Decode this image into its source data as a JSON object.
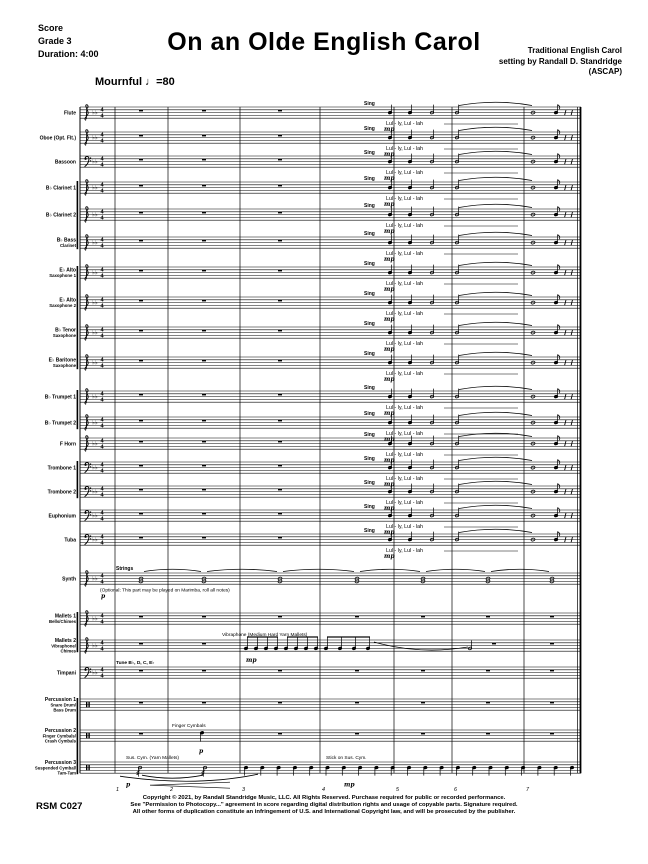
{
  "header": {
    "score_label": "Score",
    "grade": "Grade 3",
    "duration": "Duration: 4:00",
    "title": "On an Olde English Carol",
    "credit_line1": "Traditional English Carol",
    "credit_line2": "setting by Randall D. Standridge",
    "credit_line3": "(ASCAP)",
    "tempo_word": "Mournful",
    "tempo_note": "♩",
    "tempo_value": "=80"
  },
  "score": {
    "time_signature": [
      "4",
      "4"
    ],
    "key_signature": "♭♭",
    "measure_numbers": [
      "1",
      "2",
      "3",
      "4",
      "5",
      "6",
      "7"
    ],
    "staves": [
      {
        "label_lines": [
          "Flute"
        ],
        "clef": "treble",
        "kind": "wind"
      },
      {
        "label_lines": [
          "Oboe (Opt. Flt.)"
        ],
        "clef": "treble",
        "kind": "wind"
      },
      {
        "label_lines": [
          "Bassoon"
        ],
        "clef": "bass",
        "kind": "wind"
      },
      {
        "label_lines": [
          "B♭ Clarinet 1"
        ],
        "clef": "treble",
        "kind": "wind"
      },
      {
        "label_lines": [
          "B♭ Clarinet 2"
        ],
        "clef": "treble",
        "kind": "wind"
      },
      {
        "label_lines": [
          "B♭ Bass",
          "Clarinet"
        ],
        "clef": "treble",
        "kind": "wind"
      },
      {
        "label_lines": [
          "E♭ Alto",
          "Saxophone 1"
        ],
        "clef": "treble",
        "kind": "wind"
      },
      {
        "label_lines": [
          "E♭ Alto",
          "Saxophone 2"
        ],
        "clef": "treble",
        "kind": "wind"
      },
      {
        "label_lines": [
          "B♭ Tenor",
          "Saxophone"
        ],
        "clef": "treble",
        "kind": "wind"
      },
      {
        "label_lines": [
          "E♭ Baritone",
          "Saxophone"
        ],
        "clef": "treble",
        "kind": "wind"
      },
      {
        "label_lines": [
          "B♭ Trumpet 1"
        ],
        "clef": "treble",
        "kind": "wind"
      },
      {
        "label_lines": [
          "B♭ Trumpet 2"
        ],
        "clef": "treble",
        "kind": "wind"
      },
      {
        "label_lines": [
          "F Horn"
        ],
        "clef": "treble",
        "kind": "wind"
      },
      {
        "label_lines": [
          "Trombone 1"
        ],
        "clef": "bass",
        "kind": "wind"
      },
      {
        "label_lines": [
          "Trombone 2"
        ],
        "clef": "bass",
        "kind": "wind"
      },
      {
        "label_lines": [
          "Euphonium"
        ],
        "clef": "bass",
        "kind": "wind"
      },
      {
        "label_lines": [
          "Tuba"
        ],
        "clef": "bass",
        "kind": "wind"
      },
      {
        "label_lines": [
          "Synth"
        ],
        "clef": "treble",
        "kind": "synth"
      },
      {
        "label_lines": [
          "Mallets 1",
          "Bells/Chimes"
        ],
        "clef": "treble",
        "kind": "rests"
      },
      {
        "label_lines": [
          "Mallets 2",
          "Vibraphone/",
          "Chimes"
        ],
        "clef": "treble",
        "kind": "mallet2"
      },
      {
        "label_lines": [
          "Timpani"
        ],
        "clef": "bass",
        "kind": "timpani"
      },
      {
        "label_lines": [
          "Percussion 1",
          "Snare Drum/",
          "Bass Drum"
        ],
        "clef": "perc",
        "kind": "rests"
      },
      {
        "label_lines": [
          "Percussion 2",
          "Finger Cymbals/",
          "Crash Cymbals"
        ],
        "clef": "perc",
        "kind": "perc2"
      },
      {
        "label_lines": [
          "Percussion 3",
          "Suspended Cymbal/",
          "Tam-Tam"
        ],
        "clef": "perc",
        "kind": "perc3"
      }
    ],
    "annotations": {
      "sing": "Sing",
      "lyrics": "Lul - ly,  Lul - lah",
      "dyn_mp": "mp",
      "dyn_p": "p",
      "strings_label": "Strings",
      "synth_optional": "(Optional: This part may be played on Marimba, roll all notes)",
      "vibraphone": "Vibraphone (Medium Hard Yarn Mallets)",
      "timpani_tuning": "Tune B♭, D, C, E♭",
      "finger_cymbals": "Finger Cymbals",
      "sus_cym": "Sus. Cym. (Yarn Mallets)",
      "stick_sus_cym": "Stick on Sus. Cym."
    }
  },
  "footer": {
    "catalog": "RSM C027",
    "copyright_line1": "Copyright © 2021, by Randall Standridge Music, LLC. All Rights Reserved. Purchase required for public or recorded performance.",
    "copyright_line2": "See \"Permission to Photocopy...\" agreement in score regarding digital distribution rights and usage of copyable parts. Signature required.",
    "copyright_line3": "All other forms of duplication constitute an infringement of U.S. and International Copyright law, and will be prosecuted by the publisher."
  }
}
